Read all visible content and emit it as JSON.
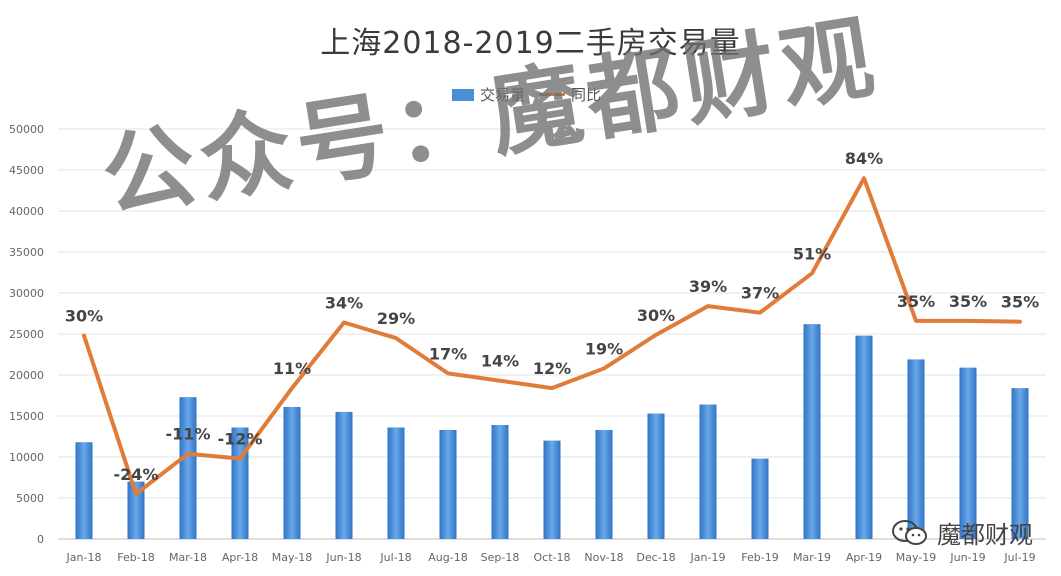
{
  "chart_data": {
    "type": "bar",
    "title": "上海2018-2019二手房交易量",
    "categories": [
      "Jan-18",
      "Feb-18",
      "Mar-18",
      "Apr-18",
      "May-18",
      "Jun-18",
      "Jul-18",
      "Aug-18",
      "Sep-18",
      "Oct-18",
      "Nov-18",
      "Dec-18",
      "Jan-19",
      "Feb-19",
      "Mar-19",
      "Apr-19",
      "May-19",
      "Jun-19",
      "Jul-19"
    ],
    "series": [
      {
        "name": "交易量",
        "type": "bar",
        "color": "#4a8ed6",
        "values": [
          11800,
          7000,
          17300,
          13600,
          16100,
          15500,
          13600,
          13300,
          13900,
          12000,
          13300,
          15300,
          16400,
          9800,
          26200,
          24800,
          21900,
          20900,
          18400
        ]
      },
      {
        "name": "同比",
        "type": "line",
        "color": "#e07b39",
        "values": [
          24800,
          5500,
          10400,
          9800,
          18400,
          26400,
          24500,
          20200,
          19300,
          18400,
          20800,
          24900,
          28400,
          27600,
          32400,
          44000,
          26600,
          26600,
          26500
        ],
        "labels": [
          "30%",
          "-24%",
          "-11%",
          "-12%",
          "11%",
          "34%",
          "29%",
          "17%",
          "14%",
          "12%",
          "19%",
          "30%",
          "39%",
          "37%",
          "51%",
          "84%",
          "35%",
          "35%",
          "35%"
        ]
      }
    ],
    "ylim": [
      0,
      50000
    ],
    "yticks": [
      "0",
      "5000",
      "10000",
      "15000",
      "20000",
      "25000",
      "30000",
      "35000",
      "40000",
      "45000",
      "50000"
    ],
    "grid": true,
    "legend": "top-center"
  },
  "watermark": "公众号：魔都财观",
  "brand": "魔都财观"
}
